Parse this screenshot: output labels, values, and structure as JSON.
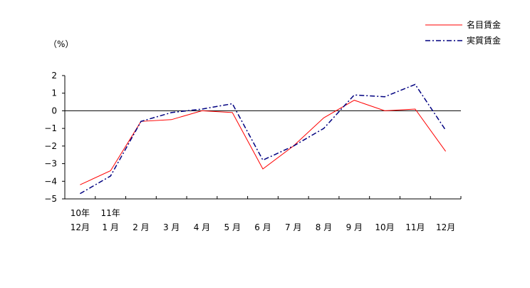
{
  "chart_data": {
    "type": "line",
    "ylabel": "（%）",
    "categories": [
      [
        "10年",
        "12月"
      ],
      [
        "11年",
        "1 月"
      ],
      [
        "",
        "2 月"
      ],
      [
        "",
        "3 月"
      ],
      [
        "",
        "4 月"
      ],
      [
        "",
        "5 月"
      ],
      [
        "",
        "6 月"
      ],
      [
        "",
        "7 月"
      ],
      [
        "",
        "8 月"
      ],
      [
        "",
        "9 月"
      ],
      [
        "",
        "10月"
      ],
      [
        "",
        "11月"
      ],
      [
        "",
        "12月"
      ]
    ],
    "series": [
      {
        "name": "名目賃金",
        "color": "#ff0000",
        "style": "solid",
        "values": [
          -4.2,
          -3.4,
          -0.6,
          -0.5,
          0.0,
          -0.1,
          -3.3,
          -2.0,
          -0.4,
          0.6,
          0.0,
          0.1,
          -2.3
        ]
      },
      {
        "name": "実質賃金",
        "color": "#000080",
        "style": "dash-dot",
        "values": [
          -4.7,
          -3.7,
          -0.6,
          -0.1,
          0.1,
          0.4,
          -2.8,
          -2.0,
          -1.0,
          0.9,
          0.8,
          1.5,
          -1.1
        ]
      }
    ],
    "ylim": [
      -5,
      2
    ],
    "yticks": [
      2,
      1,
      0,
      -1,
      -2,
      -3,
      -4,
      -5
    ],
    "ytick_labels": [
      "2",
      "1",
      "0",
      "−1",
      "−2",
      "−3",
      "−4",
      "−5"
    ],
    "grid": false,
    "legend": "top-right"
  }
}
